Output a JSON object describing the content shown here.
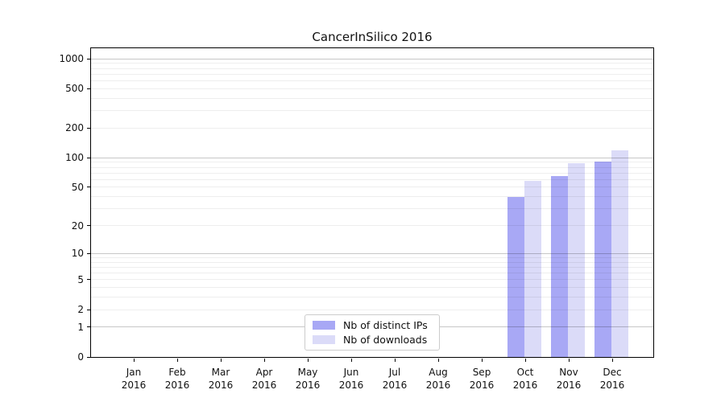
{
  "chart_data": {
    "type": "bar",
    "title": "CancerInSilico 2016",
    "categories": [
      "Jan 2016",
      "Feb 2016",
      "Mar 2016",
      "Apr 2016",
      "May 2016",
      "Jun 2016",
      "Jul 2016",
      "Aug 2016",
      "Sep 2016",
      "Oct 2016",
      "Nov 2016",
      "Dec 2016"
    ],
    "series": [
      {
        "name": "Nb of distinct IPs",
        "color": "#a8a8f5",
        "values": [
          0,
          0,
          0,
          0,
          0,
          0,
          0,
          0,
          0,
          40,
          65,
          91
        ]
      },
      {
        "name": "Nb of downloads",
        "color": "#dbdbf8",
        "values": [
          0,
          0,
          0,
          0,
          0,
          0,
          0,
          0,
          0,
          58,
          89,
          120
        ]
      }
    ],
    "yscale": "log10(1+x)",
    "yticks": [
      0,
      1,
      2,
      5,
      10,
      20,
      50,
      100,
      200,
      500,
      1000
    ],
    "ylim": [
      0,
      1280
    ],
    "grid": "both",
    "grid_major_at": [
      1,
      10,
      100,
      1000
    ],
    "legend_position": "lower center",
    "xlabel": "",
    "ylabel": ""
  },
  "colors": {
    "ips_bar": "#a8a8f5",
    "downloads_bar": "#dbdbf8",
    "spine": "#000000",
    "background": "#ffffff"
  }
}
